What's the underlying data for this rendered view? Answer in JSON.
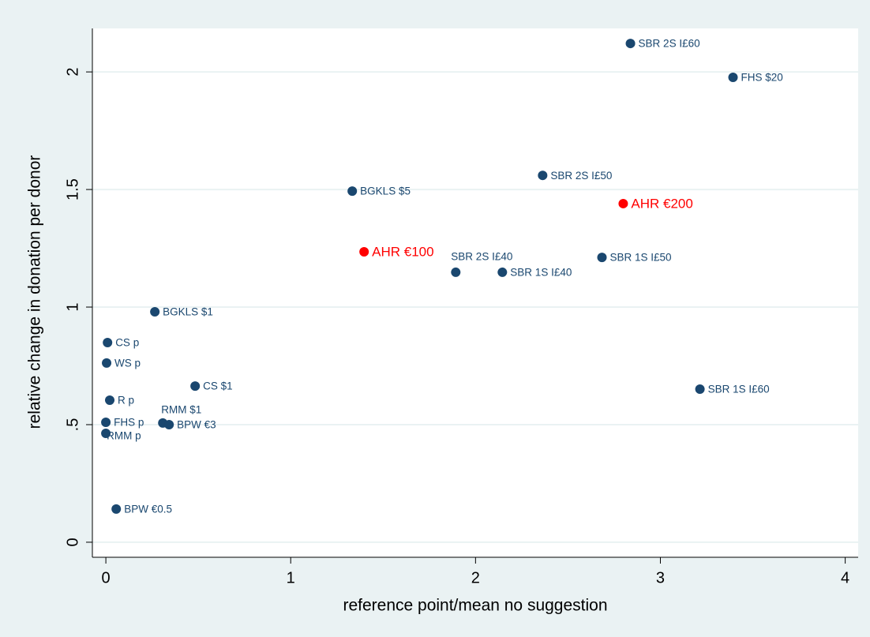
{
  "chart_data": {
    "type": "scatter",
    "xlabel": "reference point/mean no suggestion",
    "ylabel": "relative change in donation per donor",
    "xlim": [
      -0.073,
      4.07
    ],
    "ylim": [
      -0.064,
      2.185
    ],
    "xticks": [
      0,
      1,
      2,
      3,
      4
    ],
    "yticks": [
      0,
      {
        "value": 0.5,
        "label": ".5"
      },
      1,
      1.5,
      2
    ],
    "grid": true,
    "series": [
      {
        "color": "#1a476f",
        "labels": [
          "SBR 2S I£60",
          "FHS $20",
          "SBR 2S I£50",
          "BGKLS $5",
          "SBR 1S I£50",
          "SBR 2S I£40",
          "SBR 1S I£40",
          "BGKLS $1",
          "CS p",
          "WS p",
          "CS $1",
          "SBR 1S I£60",
          "R p",
          "RMM $1",
          "FHS p",
          "BPW €3",
          "RMM p",
          "BPW €0.5"
        ],
        "x": [
          2.838,
          3.393,
          2.363,
          1.333,
          2.684,
          1.893,
          2.145,
          0.265,
          0.009,
          0.004,
          0.483,
          3.214,
          0.021,
          0.308,
          0,
          0.342,
          0,
          0.056
        ],
        "y": [
          2.121,
          1.977,
          1.56,
          1.493,
          1.211,
          1.148,
          1.148,
          0.98,
          0.849,
          0.762,
          0.664,
          0.651,
          0.604,
          0.507,
          0.51,
          0.5,
          0.463,
          0.141
        ]
      },
      {
        "color": "#ff0000",
        "labels": [
          "AHR €200",
          "AHR €100"
        ],
        "x": [
          2.799,
          1.397
        ],
        "y": [
          1.44,
          1.235
        ]
      }
    ]
  }
}
